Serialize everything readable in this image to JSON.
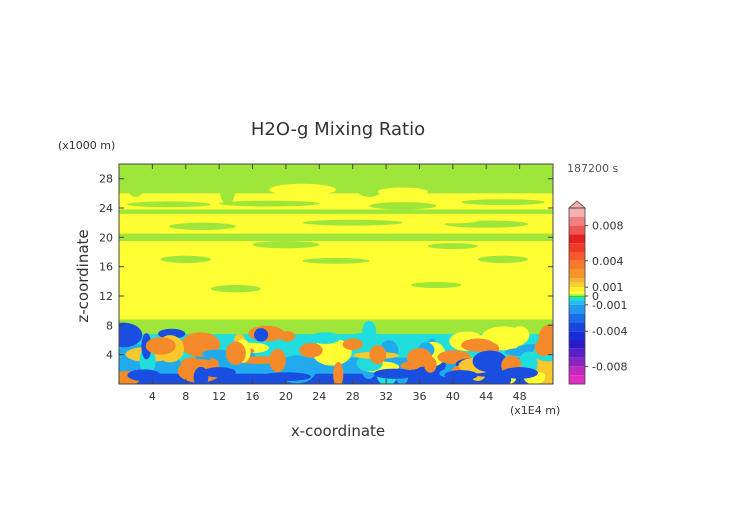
{
  "chart_data": {
    "type": "heatmap",
    "title": "H2O-g Mixing Ratio",
    "xlabel": "x-coordinate",
    "ylabel": "z-coordinate",
    "x_unit": "(x1E4 m)",
    "y_unit": "(x1000 m)",
    "time_label": "187200 s",
    "xlim": [
      0,
      52
    ],
    "ylim": [
      0,
      30
    ],
    "x_ticks": [
      "4",
      "8",
      "12",
      "16",
      "20",
      "24",
      "28",
      "32",
      "36",
      "40",
      "44",
      "48"
    ],
    "y_ticks": [
      "4",
      "8",
      "12",
      "16",
      "20",
      "24",
      "28"
    ],
    "colorbar": {
      "labels": [
        "0.008",
        "0.004",
        "0.001",
        "0",
        "-0.001",
        "-0.004",
        "-0.008"
      ],
      "label_values": [
        0.008,
        0.004,
        0.001,
        0,
        -0.001,
        -0.004,
        -0.008
      ],
      "levels": [
        {
          "upper": 0.01,
          "color": "#f6b0b0"
        },
        {
          "upper": 0.009,
          "color": "#f08080"
        },
        {
          "upper": 0.008,
          "color": "#ee5555"
        },
        {
          "upper": 0.007,
          "color": "#e62020"
        },
        {
          "upper": 0.006,
          "color": "#f03a28"
        },
        {
          "upper": 0.005,
          "color": "#f75a2a"
        },
        {
          "upper": 0.004,
          "color": "#f77a2a"
        },
        {
          "upper": 0.003,
          "color": "#f5952c"
        },
        {
          "upper": 0.002,
          "color": "#f5b430"
        },
        {
          "upper": 0.0015,
          "color": "#f8d02a"
        },
        {
          "upper": 0.001,
          "color": "#ffee22"
        },
        {
          "upper": 0.0005,
          "color": "#ffff44"
        },
        {
          "upper": 0.0002,
          "color": "#a0ee44"
        },
        {
          "upper": 0.0,
          "color": "#22dd22"
        },
        {
          "upper": -0.0002,
          "color": "#22dddd"
        },
        {
          "upper": -0.0005,
          "color": "#22bbee"
        },
        {
          "upper": -0.001,
          "color": "#2299ee"
        },
        {
          "upper": -0.002,
          "color": "#1a6ee8"
        },
        {
          "upper": -0.003,
          "color": "#1a46e0"
        },
        {
          "upper": -0.004,
          "color": "#1a2ad8"
        },
        {
          "upper": -0.005,
          "color": "#2a1acc"
        },
        {
          "upper": -0.006,
          "color": "#5a20c8"
        },
        {
          "upper": -0.007,
          "color": "#8a24c0"
        },
        {
          "upper": -0.008,
          "color": "#c028c0"
        },
        {
          "upper": -0.009,
          "color": "#e02cc0"
        },
        {
          "upper": -0.01,
          "color": "#f040b0"
        }
      ]
    },
    "field_colors": {
      "green": "#9ee63a",
      "yellow": "#ffff33",
      "cyan": "#22dddd",
      "lightblue": "#22aaee",
      "blue": "#1a4ee0",
      "orange": "#f58a2a",
      "gold": "#f8c82c"
    }
  }
}
